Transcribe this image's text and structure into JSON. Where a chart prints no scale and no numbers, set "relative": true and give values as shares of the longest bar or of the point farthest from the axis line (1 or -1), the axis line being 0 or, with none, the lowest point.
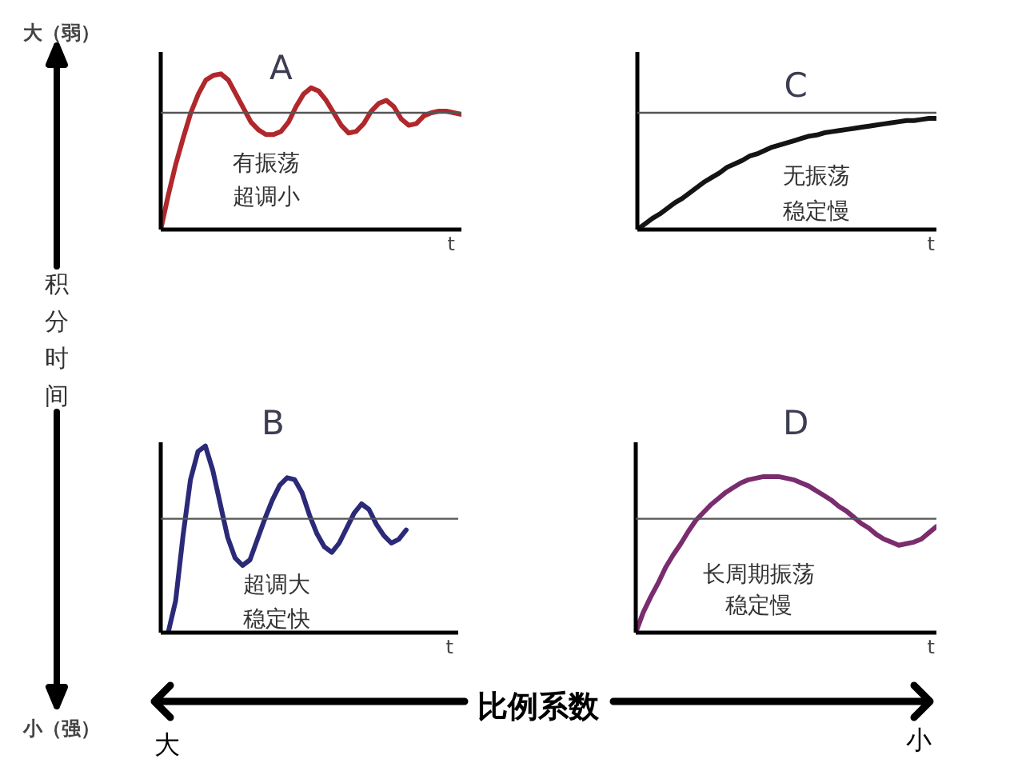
{
  "chart_data": [
    {
      "type": "line",
      "title": "A",
      "xlabel": "t",
      "relative": true,
      "categories": [
        null,
        null,
        null,
        null,
        null,
        null,
        null,
        null,
        null,
        null,
        null,
        null,
        null,
        null,
        null,
        null,
        null,
        null,
        null,
        null,
        null,
        null,
        null,
        null,
        null,
        null,
        null,
        null,
        null,
        null,
        null,
        null,
        null,
        null,
        null,
        null,
        null,
        null,
        null,
        null,
        null
      ],
      "color": "#b0282c",
      "values": [
        0,
        0.22,
        0.42,
        0.59,
        0.75,
        0.87,
        0.96,
        0.99,
        1,
        0.96,
        0.87,
        0.78,
        0.69,
        0.64,
        0.61,
        0.61,
        0.63,
        0.69,
        0.79,
        0.87,
        0.91,
        0.89,
        0.83,
        0.75,
        0.67,
        0.62,
        0.63,
        0.68,
        0.76,
        0.81,
        0.83,
        0.79,
        0.71,
        0.67,
        0.68,
        0.73,
        0.75,
        0.76,
        0.76,
        0.75,
        0.74
      ],
      "ref_lines": [
        {
          "axis": "y",
          "value": 0.75,
          "color": "#555555"
        }
      ],
      "annotations": [
        "有振荡",
        "超调小"
      ]
    },
    {
      "type": "line",
      "title": "C",
      "xlabel": "t",
      "relative": true,
      "categories": [
        null,
        null,
        null,
        null,
        null,
        null,
        null,
        null,
        null,
        null,
        null,
        null,
        null,
        null,
        null,
        null,
        null,
        null,
        null,
        null,
        null,
        null,
        null,
        null,
        null,
        null,
        null,
        null,
        null,
        null,
        null,
        null,
        null,
        null,
        null,
        null,
        null,
        null,
        null,
        null,
        null
      ],
      "color": "#141414",
      "values": [
        0,
        0.05,
        0.1,
        0.14,
        0.19,
        0.24,
        0.28,
        0.33,
        0.38,
        0.43,
        0.47,
        0.51,
        0.56,
        0.59,
        0.62,
        0.66,
        0.68,
        0.71,
        0.74,
        0.76,
        0.78,
        0.8,
        0.82,
        0.84,
        0.85,
        0.87,
        0.88,
        0.89,
        0.9,
        0.91,
        0.92,
        0.93,
        0.94,
        0.95,
        0.96,
        0.97,
        0.98,
        0.98,
        0.99,
        1,
        1
      ],
      "ref_lines": [
        {
          "axis": "y",
          "value": 1.05,
          "color": "#555555"
        }
      ],
      "annotations": [
        "无振荡",
        "稳定慢"
      ]
    },
    {
      "type": "line",
      "title": "B",
      "xlabel": "t",
      "relative": true,
      "categories": [
        null,
        null,
        null,
        null,
        null,
        null,
        null,
        null,
        null,
        null,
        null,
        null,
        null,
        null,
        null,
        null,
        null,
        null,
        null,
        null,
        null,
        null,
        null,
        null,
        null,
        null,
        null,
        null,
        null,
        null,
        null,
        null,
        null,
        null,
        null,
        null,
        null,
        null,
        null,
        null,
        null
      ],
      "color": "#2b2a78",
      "values": [
        null,
        0,
        0.17,
        0.52,
        0.82,
        0.97,
        1,
        0.87,
        0.69,
        0.51,
        0.4,
        0.36,
        0.39,
        0.5,
        0.61,
        0.71,
        0.79,
        0.83,
        0.82,
        0.75,
        0.63,
        0.53,
        0.46,
        0.43,
        0.48,
        0.56,
        0.64,
        0.69,
        0.66,
        0.58,
        0.52,
        0.48,
        0.5,
        0.55,
        null,
        null,
        null,
        null,
        null,
        null,
        null
      ],
      "ref_lines": [
        {
          "axis": "y",
          "value": 0.61,
          "color": "#555555"
        }
      ],
      "annotations": [
        "超调大",
        "稳定快"
      ]
    },
    {
      "type": "line",
      "title": "D",
      "xlabel": "t",
      "relative": true,
      "categories": [
        null,
        null,
        null,
        null,
        null,
        null,
        null,
        null,
        null,
        null,
        null,
        null,
        null,
        null,
        null,
        null,
        null,
        null,
        null,
        null,
        null,
        null,
        null,
        null,
        null,
        null,
        null,
        null,
        null,
        null,
        null,
        null,
        null,
        null,
        null,
        null,
        null,
        null,
        null,
        null,
        null
      ],
      "color": "#7a2d6e",
      "values": [
        0,
        0.13,
        0.23,
        0.32,
        0.42,
        0.5,
        0.57,
        0.65,
        0.72,
        0.77,
        0.82,
        0.86,
        0.9,
        0.93,
        0.96,
        0.98,
        0.99,
        1,
        1,
        1,
        0.99,
        0.98,
        0.96,
        0.94,
        0.91,
        0.88,
        0.85,
        0.81,
        0.78,
        0.74,
        0.7,
        0.67,
        0.63,
        0.6,
        0.58,
        0.56,
        0.57,
        0.58,
        0.6,
        0.64,
        0.68
      ],
      "ref_lines": [
        {
          "axis": "y",
          "value": 0.73,
          "color": "#555555"
        }
      ],
      "annotations": [
        "长周期振荡",
        "稳定慢"
      ]
    },
    {
      "type": "other",
      "ylabel": "积分时间",
      "xlabel": "比例系数",
      "annotations": [
        "大（弱）",
        "小（强）",
        "大",
        "小"
      ]
    }
  ]
}
